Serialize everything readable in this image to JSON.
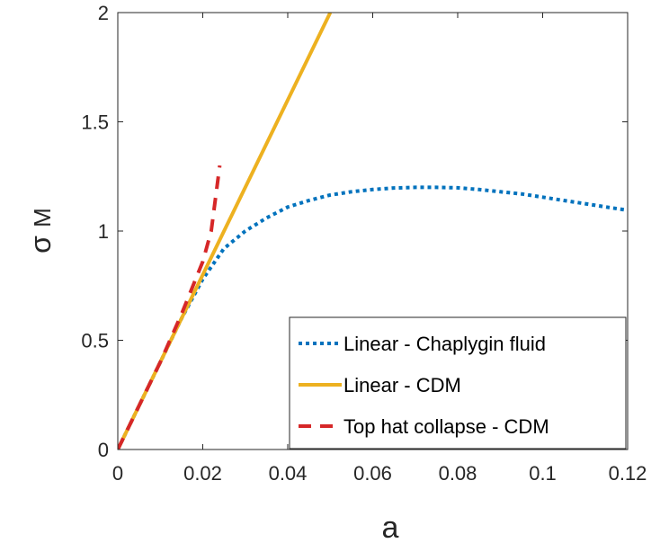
{
  "chart_data": {
    "type": "line",
    "title": "",
    "xlabel": "a",
    "ylabel": "σ",
    "ylabel_subscript": "M",
    "xlim": [
      0,
      0.12
    ],
    "ylim": [
      0,
      2
    ],
    "xticks": [
      0,
      0.02,
      0.04,
      0.06,
      0.08,
      0.1,
      0.12
    ],
    "xtick_labels": [
      "0",
      "0.02",
      "0.04",
      "0.06",
      "0.08",
      "0.1",
      "0.12"
    ],
    "yticks": [
      0,
      0.5,
      1,
      1.5,
      2
    ],
    "ytick_labels": [
      "0",
      "0.5",
      "1",
      "1.5",
      "2"
    ],
    "grid": false,
    "legend_position": "bottom-right",
    "series": [
      {
        "name": "Linear - Chaplygin fluid",
        "style": "dotted",
        "color": "#0072BD",
        "x": [
          0,
          0.005,
          0.01,
          0.015,
          0.02,
          0.025,
          0.03,
          0.035,
          0.04,
          0.045,
          0.05,
          0.055,
          0.06,
          0.065,
          0.07,
          0.075,
          0.08,
          0.085,
          0.09,
          0.095,
          0.1,
          0.105,
          0.11,
          0.115,
          0.12
        ],
        "y": [
          0,
          0.2,
          0.4,
          0.6,
          0.78,
          0.92,
          1.0,
          1.06,
          1.11,
          1.14,
          1.165,
          1.18,
          1.19,
          1.197,
          1.2,
          1.2,
          1.198,
          1.19,
          1.18,
          1.17,
          1.155,
          1.14,
          1.125,
          1.11,
          1.095
        ]
      },
      {
        "name": "Linear - CDM",
        "style": "solid",
        "color": "#EDB120",
        "x": [
          0,
          0.05
        ],
        "y": [
          0,
          2.0
        ]
      },
      {
        "name": "Top hat collapse - CDM",
        "style": "dashed",
        "color": "#D62728",
        "x": [
          0,
          0.005,
          0.01,
          0.015,
          0.02,
          0.022,
          0.024
        ],
        "y": [
          0,
          0.2,
          0.4,
          0.62,
          0.86,
          1.0,
          1.3
        ]
      }
    ]
  }
}
